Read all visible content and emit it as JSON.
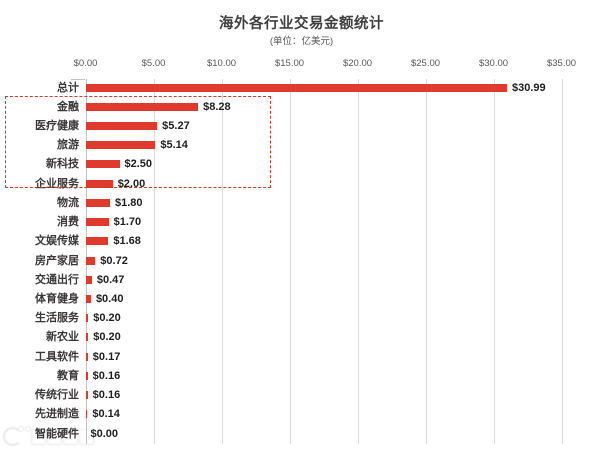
{
  "chart_data": {
    "type": "bar",
    "orientation": "horizontal",
    "title": "海外各行业交易金额统计",
    "subtitle": "(单位：亿美元)",
    "unit": "亿美元",
    "legend": "none",
    "grid": "vertical",
    "bar_color": "#e03a2f",
    "highlight_box_color": "#cf3a2e",
    "xlim": [
      0,
      35
    ],
    "x_tick_labels": [
      "$0.00",
      "$5.00",
      "$10.00",
      "$15.00",
      "$20.00",
      "$25.00",
      "$30.00",
      "$35.00"
    ],
    "categories": [
      "总计",
      "金融",
      "医疗健康",
      "旅游",
      "新科技",
      "企业服务",
      "物流",
      "消费",
      "文娱传媒",
      "房产家居",
      "交通出行",
      "体育健身",
      "生活服务",
      "新农业",
      "工具软件",
      "教育",
      "传统行业",
      "先进制造",
      "智能硬件"
    ],
    "values": [
      30.99,
      8.28,
      5.27,
      5.14,
      2.5,
      2.0,
      1.8,
      1.7,
      1.68,
      0.72,
      0.47,
      0.4,
      0.2,
      0.2,
      0.17,
      0.16,
      0.16,
      0.14,
      0.0
    ],
    "value_labels": [
      "$30.99",
      "$8.28",
      "$5.27",
      "$5.14",
      "$2.50",
      "$2.00",
      "$1.80",
      "$1.70",
      "$1.68",
      "$0.72",
      "$0.47",
      "$0.40",
      "$0.20",
      "$0.20",
      "$0.17",
      "$0.16",
      "$0.16",
      "$0.14",
      "$0.00"
    ],
    "highlighted_categories": [
      "金融",
      "医疗健康",
      "旅游",
      "新科技",
      "企业服务"
    ]
  }
}
